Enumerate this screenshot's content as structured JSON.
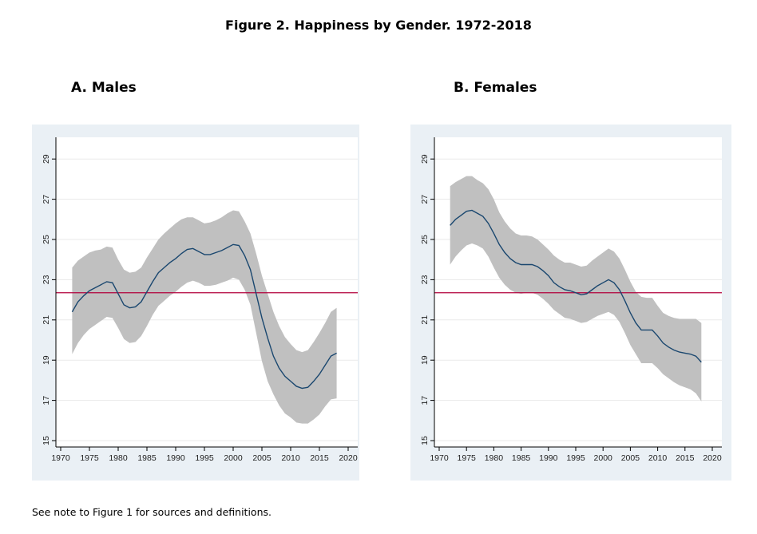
{
  "figure_title": "Figure 2. Happiness by Gender. 1972-2018",
  "note": "See note to Figure 1 for sources and definitions.",
  "colors": {
    "band": "#c0c0c0",
    "line": "#1a476f",
    "reference": "#b3003c",
    "panel_bg": "#eaf0f5",
    "plot_bg": "#ffffff"
  },
  "chart_data": [
    {
      "type": "line",
      "title": "A. Males",
      "xlim": [
        1970,
        2020
      ],
      "ylim": [
        15,
        30
      ],
      "x_ticks": [
        1970,
        1975,
        1980,
        1985,
        1990,
        1995,
        2000,
        2005,
        2010,
        2015,
        2020
      ],
      "y_ticks": [
        15,
        17,
        19,
        21,
        23,
        25,
        27,
        29
      ],
      "reference_line": 22.35,
      "grid": true,
      "x": [
        1972,
        1973,
        1974,
        1975,
        1976,
        1977,
        1978,
        1979,
        1980,
        1981,
        1982,
        1983,
        1984,
        1985,
        1986,
        1987,
        1988,
        1989,
        1990,
        1991,
        1992,
        1993,
        1994,
        1995,
        1996,
        1997,
        1998,
        1999,
        2000,
        2001,
        2002,
        2003,
        2004,
        2005,
        2006,
        2007,
        2008,
        2009,
        2010,
        2011,
        2012,
        2013,
        2014,
        2015,
        2016,
        2017,
        2018
      ],
      "series": [
        {
          "values": [
            21.4,
            21.9,
            22.2,
            22.45,
            22.6,
            22.75,
            22.9,
            22.85,
            22.3,
            21.75,
            21.6,
            21.65,
            21.9,
            22.4,
            22.9,
            23.35,
            23.6,
            23.85,
            24.05,
            24.3,
            24.5,
            24.55,
            24.4,
            24.25,
            24.25,
            24.35,
            24.45,
            24.6,
            24.75,
            24.7,
            24.2,
            23.5,
            22.3,
            21.1,
            20.1,
            19.2,
            18.6,
            18.2,
            17.95,
            17.7,
            17.6,
            17.65,
            17.95,
            18.3,
            18.75,
            19.2,
            19.35
          ]
        },
        {
          "name": "upper",
          "values": [
            23.6,
            23.95,
            24.15,
            24.35,
            24.45,
            24.5,
            24.65,
            24.6,
            24.0,
            23.5,
            23.35,
            23.4,
            23.6,
            24.1,
            24.55,
            25.0,
            25.3,
            25.55,
            25.8,
            26.0,
            26.1,
            26.1,
            25.95,
            25.8,
            25.85,
            25.95,
            26.1,
            26.3,
            26.45,
            26.4,
            25.9,
            25.3,
            24.3,
            23.2,
            22.3,
            21.4,
            20.7,
            20.15,
            19.8,
            19.5,
            19.4,
            19.5,
            19.9,
            20.35,
            20.85,
            21.4,
            21.6
          ]
        },
        {
          "name": "lower",
          "values": [
            19.3,
            19.85,
            20.25,
            20.55,
            20.75,
            20.95,
            21.15,
            21.1,
            20.6,
            20.05,
            19.85,
            19.9,
            20.2,
            20.7,
            21.25,
            21.7,
            21.95,
            22.2,
            22.4,
            22.65,
            22.85,
            22.95,
            22.85,
            22.7,
            22.7,
            22.75,
            22.85,
            22.95,
            23.1,
            23.0,
            22.5,
            21.75,
            20.35,
            18.95,
            17.95,
            17.3,
            16.75,
            16.35,
            16.15,
            15.9,
            15.85,
            15.85,
            16.05,
            16.3,
            16.7,
            17.05,
            17.1
          ]
        }
      ]
    },
    {
      "type": "line",
      "title": "B. Females",
      "xlim": [
        1970,
        2020
      ],
      "ylim": [
        15,
        30
      ],
      "x_ticks": [
        1970,
        1975,
        1980,
        1985,
        1990,
        1995,
        2000,
        2005,
        2010,
        2015,
        2020
      ],
      "y_ticks": [
        15,
        17,
        19,
        21,
        23,
        25,
        27,
        29
      ],
      "reference_line": 22.35,
      "grid": true,
      "x": [
        1972,
        1973,
        1974,
        1975,
        1976,
        1977,
        1978,
        1979,
        1980,
        1981,
        1982,
        1983,
        1984,
        1985,
        1986,
        1987,
        1988,
        1989,
        1990,
        1991,
        1992,
        1993,
        1994,
        1995,
        1996,
        1997,
        1998,
        1999,
        2000,
        2001,
        2002,
        2003,
        2004,
        2005,
        2006,
        2007,
        2008,
        2009,
        2010,
        2011,
        2012,
        2013,
        2014,
        2015,
        2016,
        2017,
        2018
      ],
      "series": [
        {
          "values": [
            25.7,
            26.0,
            26.2,
            26.4,
            26.45,
            26.3,
            26.15,
            25.8,
            25.3,
            24.75,
            24.35,
            24.05,
            23.85,
            23.75,
            23.75,
            23.75,
            23.65,
            23.45,
            23.2,
            22.85,
            22.65,
            22.5,
            22.45,
            22.35,
            22.25,
            22.3,
            22.5,
            22.7,
            22.85,
            23.0,
            22.85,
            22.5,
            21.95,
            21.35,
            20.85,
            20.5,
            20.5,
            20.5,
            20.2,
            19.85,
            19.65,
            19.5,
            19.4,
            19.35,
            19.3,
            19.2,
            18.9
          ]
        },
        {
          "name": "upper",
          "values": [
            27.65,
            27.85,
            28.0,
            28.15,
            28.15,
            27.95,
            27.8,
            27.5,
            27.0,
            26.35,
            25.9,
            25.55,
            25.3,
            25.2,
            25.2,
            25.15,
            25.0,
            24.75,
            24.5,
            24.2,
            24.0,
            23.85,
            23.85,
            23.75,
            23.65,
            23.7,
            23.95,
            24.15,
            24.35,
            24.55,
            24.4,
            24.05,
            23.5,
            22.9,
            22.4,
            22.15,
            22.1,
            22.1,
            21.7,
            21.35,
            21.2,
            21.1,
            21.05,
            21.05,
            21.05,
            21.05,
            20.85
          ]
        },
        {
          "name": "lower",
          "values": [
            23.75,
            24.15,
            24.45,
            24.7,
            24.8,
            24.7,
            24.55,
            24.15,
            23.6,
            23.1,
            22.75,
            22.5,
            22.35,
            22.3,
            22.35,
            22.35,
            22.25,
            22.05,
            21.8,
            21.5,
            21.3,
            21.1,
            21.05,
            20.95,
            20.85,
            20.9,
            21.05,
            21.2,
            21.3,
            21.4,
            21.25,
            20.9,
            20.35,
            19.75,
            19.3,
            18.85,
            18.85,
            18.85,
            18.6,
            18.3,
            18.1,
            17.9,
            17.75,
            17.65,
            17.55,
            17.35,
            16.95
          ]
        }
      ]
    }
  ]
}
